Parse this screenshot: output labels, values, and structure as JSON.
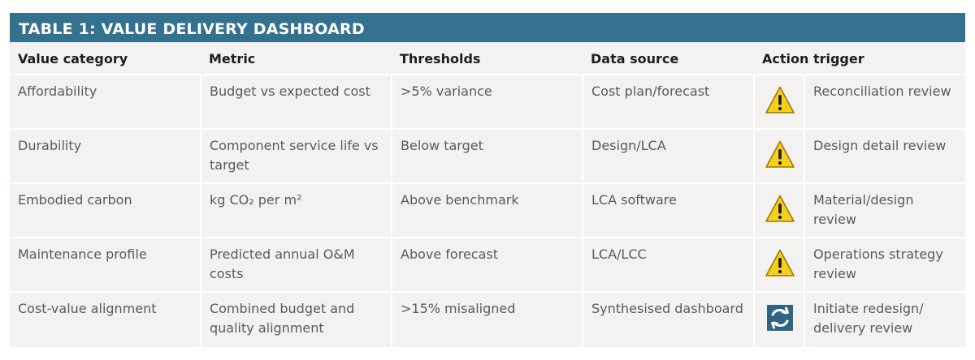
{
  "table": {
    "title": "TABLE 1: VALUE DELIVERY DASHBOARD",
    "headers": {
      "category": "Value category",
      "metric": "Metric",
      "thresholds": "Thresholds",
      "source": "Data source",
      "action": "Action trigger"
    },
    "rows": [
      {
        "category": "Affordability",
        "metric": "Budget vs expected cost",
        "threshold": ">5% variance",
        "source": "Cost plan/forecast",
        "icon": "warning-icon",
        "action": "Reconciliation review"
      },
      {
        "category": "Durability",
        "metric": "Component service life vs target",
        "threshold": "Below target",
        "source": "Design/LCA",
        "icon": "warning-icon",
        "action": "Design detail review"
      },
      {
        "category": "Embodied carbon",
        "metric": "kg CO₂ per m²",
        "threshold": "Above benchmark",
        "source": "LCA software",
        "icon": "warning-icon",
        "action": "Material/design review"
      },
      {
        "category": "Maintenance profile",
        "metric": "Predicted annual O&M costs",
        "threshold": "Above forecast",
        "source": "LCA/LCC",
        "icon": "warning-icon",
        "action": "Operations strategy review"
      },
      {
        "category": "Cost-value alignment",
        "metric": "Combined budget and quality alignment",
        "threshold": ">15% misaligned",
        "source": "Synthesised dashboard",
        "icon": "redesign-swap-icon",
        "action": "Initiate redesign/ delivery review"
      }
    ]
  },
  "colors": {
    "title_bar": "#34718f",
    "table_bg": "#f4f2f0",
    "warning_fill": "#f5cf1d",
    "swap_fill": "#2f6583"
  }
}
